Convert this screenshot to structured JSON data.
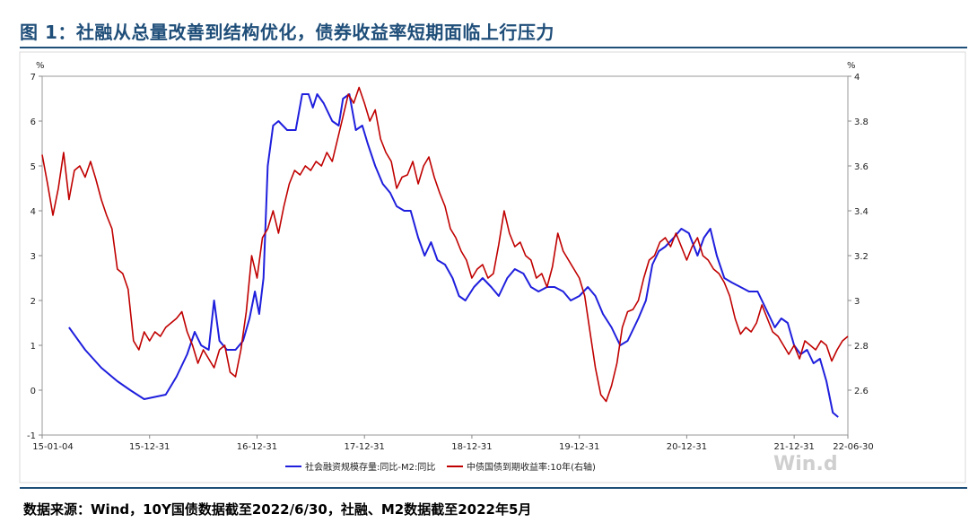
{
  "header": {
    "title": "图 1：社融从总量改善到结构优化，债券收益率短期面临上行压力"
  },
  "footer": {
    "source": "数据来源：Wind，10Y国债数据截至2022/6/30，社融、M2数据截至2022年5月"
  },
  "watermark": "Win.d",
  "chart_data": {
    "type": "line",
    "left_axis": {
      "unit": "%",
      "ylim": [
        -1,
        7
      ],
      "ticks": [
        "-1",
        "0",
        "1",
        "2",
        "3",
        "4",
        "5",
        "6",
        "7"
      ]
    },
    "right_axis": {
      "unit": "%",
      "ylim": [
        2.4,
        4.0
      ],
      "ticks": [
        "2.6",
        "2.8",
        "3",
        "3.2",
        "3.4",
        "3.6",
        "3.8",
        "4"
      ]
    },
    "x_labels": [
      "15-01-04",
      "15-12-31",
      "16-12-31",
      "17-12-31",
      "18-12-31",
      "19-12-31",
      "20-12-31",
      "21-12-31",
      "22-06-30"
    ],
    "series": [
      {
        "name": "社会融资规模存量:同比-M2:同比",
        "axis": "left",
        "color": "#1f1fdd",
        "points": [
          [
            2015.25,
            1.4
          ],
          [
            2015.4,
            0.9
          ],
          [
            2015.55,
            0.5
          ],
          [
            2015.7,
            0.2
          ],
          [
            2015.82,
            0.0
          ],
          [
            2015.95,
            -0.2
          ],
          [
            2016.05,
            -0.15
          ],
          [
            2016.15,
            -0.1
          ],
          [
            2016.25,
            0.3
          ],
          [
            2016.35,
            0.8
          ],
          [
            2016.42,
            1.3
          ],
          [
            2016.48,
            1.0
          ],
          [
            2016.55,
            0.9
          ],
          [
            2016.6,
            2.0
          ],
          [
            2016.65,
            1.1
          ],
          [
            2016.72,
            0.9
          ],
          [
            2016.8,
            0.9
          ],
          [
            2016.87,
            1.1
          ],
          [
            2016.93,
            1.6
          ],
          [
            2016.98,
            2.2
          ],
          [
            2017.02,
            1.7
          ],
          [
            2017.06,
            2.5
          ],
          [
            2017.1,
            5.0
          ],
          [
            2017.15,
            5.9
          ],
          [
            2017.2,
            6.0
          ],
          [
            2017.28,
            5.8
          ],
          [
            2017.36,
            5.8
          ],
          [
            2017.42,
            6.6
          ],
          [
            2017.48,
            6.6
          ],
          [
            2017.52,
            6.3
          ],
          [
            2017.56,
            6.6
          ],
          [
            2017.62,
            6.4
          ],
          [
            2017.7,
            6.0
          ],
          [
            2017.76,
            5.9
          ],
          [
            2017.8,
            6.5
          ],
          [
            2017.86,
            6.6
          ],
          [
            2017.92,
            5.8
          ],
          [
            2017.98,
            5.9
          ],
          [
            2018.03,
            5.5
          ],
          [
            2018.1,
            5.0
          ],
          [
            2018.17,
            4.6
          ],
          [
            2018.24,
            4.4
          ],
          [
            2018.3,
            4.1
          ],
          [
            2018.37,
            4.0
          ],
          [
            2018.43,
            4.0
          ],
          [
            2018.5,
            3.4
          ],
          [
            2018.56,
            3.0
          ],
          [
            2018.62,
            3.3
          ],
          [
            2018.68,
            2.9
          ],
          [
            2018.75,
            2.8
          ],
          [
            2018.82,
            2.5
          ],
          [
            2018.88,
            2.1
          ],
          [
            2018.94,
            2.0
          ],
          [
            2019.02,
            2.3
          ],
          [
            2019.1,
            2.5
          ],
          [
            2019.18,
            2.3
          ],
          [
            2019.25,
            2.1
          ],
          [
            2019.33,
            2.5
          ],
          [
            2019.4,
            2.7
          ],
          [
            2019.48,
            2.6
          ],
          [
            2019.55,
            2.3
          ],
          [
            2019.62,
            2.2
          ],
          [
            2019.7,
            2.3
          ],
          [
            2019.77,
            2.3
          ],
          [
            2019.85,
            2.2
          ],
          [
            2019.92,
            2.0
          ],
          [
            2020.0,
            2.1
          ],
          [
            2020.08,
            2.3
          ],
          [
            2020.15,
            2.1
          ],
          [
            2020.22,
            1.7
          ],
          [
            2020.3,
            1.4
          ],
          [
            2020.38,
            1.0
          ],
          [
            2020.45,
            1.1
          ],
          [
            2020.55,
            1.6
          ],
          [
            2020.62,
            2.0
          ],
          [
            2020.68,
            2.8
          ],
          [
            2020.74,
            3.1
          ],
          [
            2020.8,
            3.2
          ],
          [
            2020.88,
            3.4
          ],
          [
            2020.95,
            3.6
          ],
          [
            2021.02,
            3.5
          ],
          [
            2021.1,
            3.0
          ],
          [
            2021.16,
            3.4
          ],
          [
            2021.22,
            3.6
          ],
          [
            2021.28,
            3.0
          ],
          [
            2021.35,
            2.5
          ],
          [
            2021.42,
            2.4
          ],
          [
            2021.5,
            2.3
          ],
          [
            2021.58,
            2.2
          ],
          [
            2021.66,
            2.2
          ],
          [
            2021.74,
            1.8
          ],
          [
            2021.82,
            1.4
          ],
          [
            2021.88,
            1.6
          ],
          [
            2021.94,
            1.5
          ],
          [
            2022.0,
            1.0
          ],
          [
            2022.06,
            0.8
          ],
          [
            2022.12,
            0.9
          ],
          [
            2022.18,
            0.6
          ],
          [
            2022.24,
            0.7
          ],
          [
            2022.3,
            0.2
          ],
          [
            2022.36,
            -0.5
          ],
          [
            2022.41,
            -0.6
          ]
        ]
      },
      {
        "name": "中债国债到期收益率:10年(右轴)",
        "axis": "right",
        "color": "#c00000",
        "points": [
          [
            2015.0,
            3.65
          ],
          [
            2015.05,
            3.52
          ],
          [
            2015.1,
            3.38
          ],
          [
            2015.15,
            3.5
          ],
          [
            2015.2,
            3.66
          ],
          [
            2015.25,
            3.45
          ],
          [
            2015.3,
            3.58
          ],
          [
            2015.35,
            3.6
          ],
          [
            2015.4,
            3.55
          ],
          [
            2015.45,
            3.62
          ],
          [
            2015.5,
            3.54
          ],
          [
            2015.55,
            3.45
          ],
          [
            2015.6,
            3.38
          ],
          [
            2015.65,
            3.32
          ],
          [
            2015.7,
            3.14
          ],
          [
            2015.75,
            3.12
          ],
          [
            2015.8,
            3.05
          ],
          [
            2015.85,
            2.82
          ],
          [
            2015.9,
            2.78
          ],
          [
            2015.95,
            2.86
          ],
          [
            2016.0,
            2.82
          ],
          [
            2016.05,
            2.86
          ],
          [
            2016.1,
            2.84
          ],
          [
            2016.15,
            2.88
          ],
          [
            2016.2,
            2.9
          ],
          [
            2016.25,
            2.92
          ],
          [
            2016.3,
            2.95
          ],
          [
            2016.35,
            2.86
          ],
          [
            2016.4,
            2.8
          ],
          [
            2016.45,
            2.72
          ],
          [
            2016.5,
            2.78
          ],
          [
            2016.55,
            2.74
          ],
          [
            2016.6,
            2.7
          ],
          [
            2016.65,
            2.78
          ],
          [
            2016.7,
            2.8
          ],
          [
            2016.75,
            2.68
          ],
          [
            2016.8,
            2.66
          ],
          [
            2016.85,
            2.78
          ],
          [
            2016.9,
            2.95
          ],
          [
            2016.95,
            3.2
          ],
          [
            2017.0,
            3.1
          ],
          [
            2017.05,
            3.28
          ],
          [
            2017.1,
            3.32
          ],
          [
            2017.15,
            3.4
          ],
          [
            2017.2,
            3.3
          ],
          [
            2017.25,
            3.42
          ],
          [
            2017.3,
            3.52
          ],
          [
            2017.35,
            3.58
          ],
          [
            2017.4,
            3.56
          ],
          [
            2017.45,
            3.6
          ],
          [
            2017.5,
            3.58
          ],
          [
            2017.55,
            3.62
          ],
          [
            2017.6,
            3.6
          ],
          [
            2017.65,
            3.66
          ],
          [
            2017.7,
            3.62
          ],
          [
            2017.75,
            3.72
          ],
          [
            2017.8,
            3.82
          ],
          [
            2017.85,
            3.92
          ],
          [
            2017.9,
            3.88
          ],
          [
            2017.95,
            3.95
          ],
          [
            2018.0,
            3.88
          ],
          [
            2018.05,
            3.8
          ],
          [
            2018.1,
            3.85
          ],
          [
            2018.15,
            3.72
          ],
          [
            2018.2,
            3.66
          ],
          [
            2018.25,
            3.62
          ],
          [
            2018.3,
            3.5
          ],
          [
            2018.35,
            3.55
          ],
          [
            2018.4,
            3.56
          ],
          [
            2018.45,
            3.62
          ],
          [
            2018.5,
            3.52
          ],
          [
            2018.55,
            3.6
          ],
          [
            2018.6,
            3.64
          ],
          [
            2018.65,
            3.55
          ],
          [
            2018.7,
            3.48
          ],
          [
            2018.75,
            3.42
          ],
          [
            2018.8,
            3.32
          ],
          [
            2018.85,
            3.28
          ],
          [
            2018.9,
            3.22
          ],
          [
            2018.95,
            3.18
          ],
          [
            2019.0,
            3.1
          ],
          [
            2019.05,
            3.14
          ],
          [
            2019.1,
            3.16
          ],
          [
            2019.15,
            3.1
          ],
          [
            2019.2,
            3.12
          ],
          [
            2019.25,
            3.25
          ],
          [
            2019.3,
            3.4
          ],
          [
            2019.35,
            3.3
          ],
          [
            2019.4,
            3.24
          ],
          [
            2019.45,
            3.26
          ],
          [
            2019.5,
            3.2
          ],
          [
            2019.55,
            3.18
          ],
          [
            2019.6,
            3.1
          ],
          [
            2019.65,
            3.12
          ],
          [
            2019.7,
            3.06
          ],
          [
            2019.75,
            3.15
          ],
          [
            2019.8,
            3.3
          ],
          [
            2019.85,
            3.22
          ],
          [
            2019.9,
            3.18
          ],
          [
            2019.95,
            3.14
          ],
          [
            2020.0,
            3.1
          ],
          [
            2020.05,
            3.02
          ],
          [
            2020.1,
            2.86
          ],
          [
            2020.15,
            2.7
          ],
          [
            2020.2,
            2.58
          ],
          [
            2020.25,
            2.55
          ],
          [
            2020.3,
            2.62
          ],
          [
            2020.35,
            2.72
          ],
          [
            2020.4,
            2.88
          ],
          [
            2020.45,
            2.95
          ],
          [
            2020.5,
            2.96
          ],
          [
            2020.55,
            3.0
          ],
          [
            2020.6,
            3.1
          ],
          [
            2020.65,
            3.18
          ],
          [
            2020.7,
            3.2
          ],
          [
            2020.75,
            3.26
          ],
          [
            2020.8,
            3.28
          ],
          [
            2020.85,
            3.24
          ],
          [
            2020.9,
            3.3
          ],
          [
            2020.95,
            3.24
          ],
          [
            2021.0,
            3.18
          ],
          [
            2021.05,
            3.24
          ],
          [
            2021.1,
            3.28
          ],
          [
            2021.15,
            3.2
          ],
          [
            2021.2,
            3.18
          ],
          [
            2021.25,
            3.14
          ],
          [
            2021.3,
            3.12
          ],
          [
            2021.35,
            3.08
          ],
          [
            2021.4,
            3.02
          ],
          [
            2021.45,
            2.92
          ],
          [
            2021.5,
            2.85
          ],
          [
            2021.55,
            2.88
          ],
          [
            2021.6,
            2.86
          ],
          [
            2021.65,
            2.9
          ],
          [
            2021.7,
            2.98
          ],
          [
            2021.75,
            2.92
          ],
          [
            2021.8,
            2.86
          ],
          [
            2021.85,
            2.84
          ],
          [
            2021.9,
            2.8
          ],
          [
            2021.95,
            2.76
          ],
          [
            2022.0,
            2.8
          ],
          [
            2022.05,
            2.74
          ],
          [
            2022.1,
            2.82
          ],
          [
            2022.15,
            2.8
          ],
          [
            2022.2,
            2.78
          ],
          [
            2022.25,
            2.82
          ],
          [
            2022.3,
            2.8
          ],
          [
            2022.35,
            2.73
          ],
          [
            2022.4,
            2.78
          ],
          [
            2022.45,
            2.82
          ],
          [
            2022.5,
            2.84
          ]
        ]
      }
    ]
  }
}
